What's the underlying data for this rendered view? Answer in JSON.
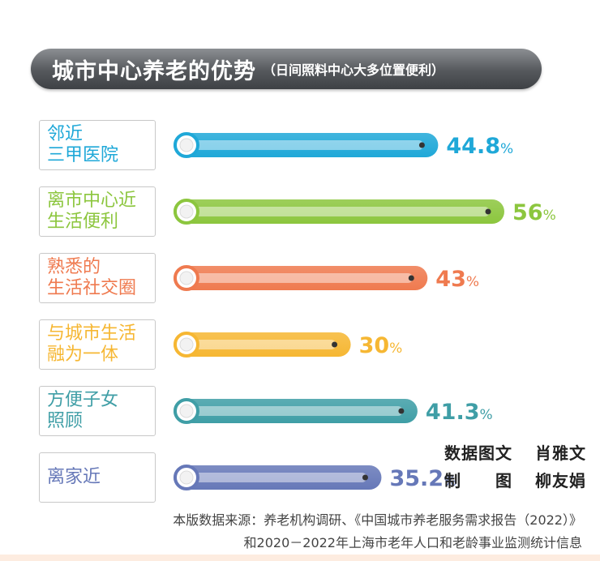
{
  "title": {
    "main": "城市中心养老的优势",
    "sub": "（日间照料中心大多位置便利）"
  },
  "chart_data": {
    "type": "bar",
    "orientation": "horizontal",
    "unit": "%",
    "categories": [
      "邻近\n三甲医院",
      "离市中心近\n生活便利",
      "熟悉的\n生活社交圈",
      "与城市生活\n融为一体",
      "方便子女\n照顾",
      "离家近"
    ],
    "values": [
      44.8,
      56,
      43,
      30,
      41.3,
      35.2
    ],
    "value_labels": [
      "44.8",
      "56",
      "43",
      "30",
      "41.3",
      "35.2"
    ],
    "colors": [
      "#1fa8d8",
      "#8cc63e",
      "#ef7a4f",
      "#f6b733",
      "#3f9ea6",
      "#6678b8"
    ],
    "xlim": [
      0,
      56
    ]
  },
  "credits": {
    "line1_left": "数据图文",
    "line1_right": "肖雅文",
    "line2_left": "制　　图",
    "line2_right": "柳友娟"
  },
  "source": {
    "line1": "本版数据来源：养老机构调研、《中国城市养老服务需求报告（2022）》",
    "line2": "和2020－2022年上海市老年人口和老龄事业监测统计信息"
  }
}
